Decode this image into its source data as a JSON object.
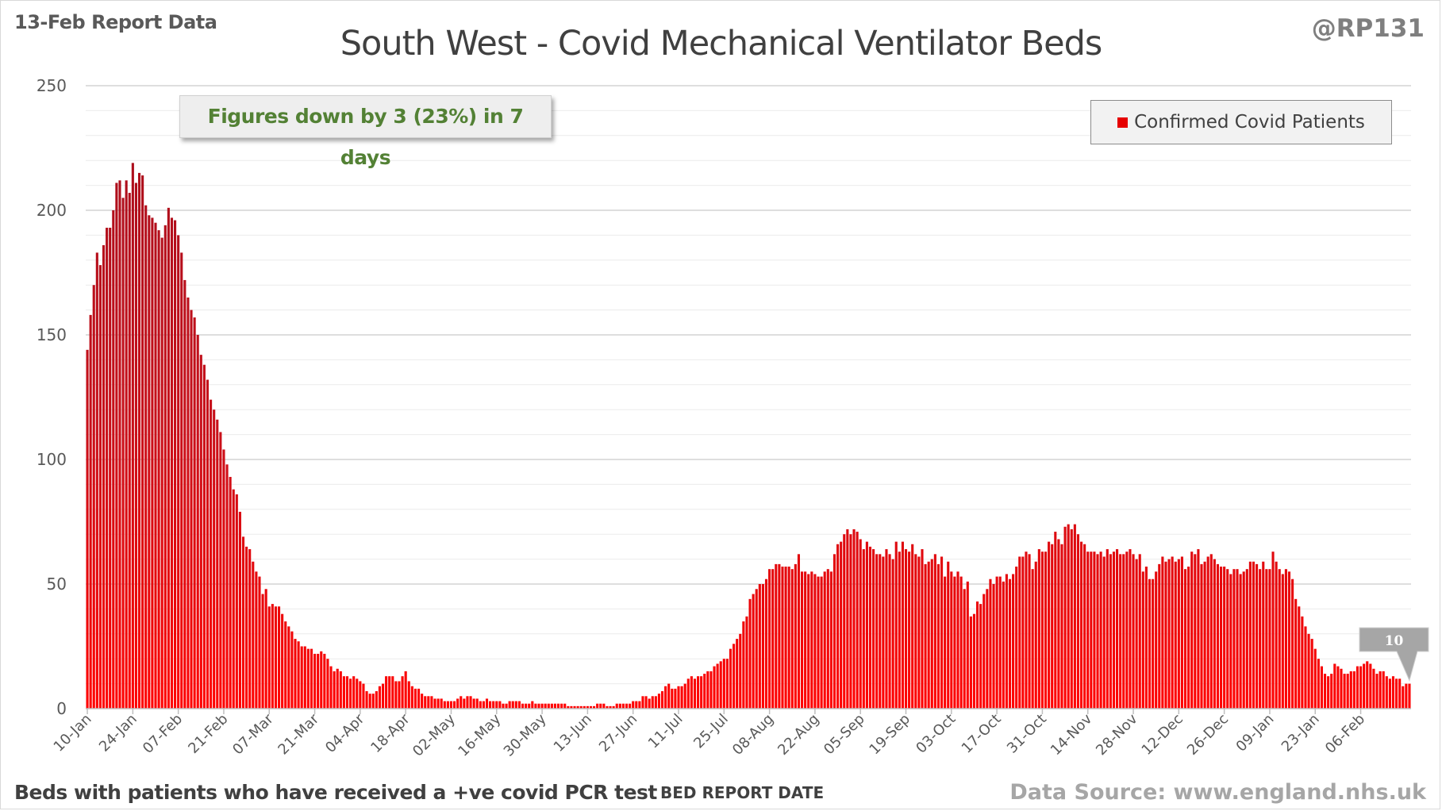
{
  "header": {
    "report_date": "13-Feb Report Data",
    "handle": "@RP131"
  },
  "footer": {
    "subtitle": "Beds with patients who have received a +ve covid PCR test",
    "source": "Data Source: www.england.nhs.uk"
  },
  "callout": {
    "text": "Figures down by 3 (23%) in 7 days",
    "color": "#538135"
  },
  "colors": {
    "bar_top": "#a40d1c",
    "bar_bottom": "#ff0000",
    "grid": "#d9d9d9",
    "axis_text": "#595959"
  },
  "chart_data": {
    "type": "bar",
    "title": "South West - Covid Mechanical Ventilator Beds",
    "xlabel": "BED REPORT DATE",
    "ylabel": "",
    "ylim": [
      0,
      250
    ],
    "yticks": [
      0,
      50,
      100,
      150,
      200,
      250
    ],
    "grid": true,
    "legend_position": "top-right",
    "x_start": "10-Jan",
    "x_tick_every_days": 14,
    "xtick_labels": [
      "10-Jan",
      "24-Jan",
      "07-Feb",
      "21-Feb",
      "07-Mar",
      "21-Mar",
      "04-Apr",
      "18-Apr",
      "02-May",
      "16-May",
      "30-May",
      "13-Jun",
      "27-Jun",
      "11-Jul",
      "25-Jul",
      "08-Aug",
      "22-Aug",
      "05-Sep",
      "19-Sep",
      "03-Oct",
      "17-Oct",
      "31-Oct",
      "14-Nov",
      "28-Nov",
      "12-Dec",
      "26-Dec",
      "09-Jan",
      "23-Jan",
      "06-Feb"
    ],
    "series": [
      {
        "name": "Confirmed Covid Patients",
        "color": "#e60000",
        "values": [
          144,
          158,
          170,
          183,
          178,
          186,
          193,
          193,
          200,
          211,
          212,
          205,
          212,
          207,
          219,
          211,
          215,
          214,
          202,
          198,
          197,
          195,
          192,
          189,
          194,
          201,
          197,
          196,
          190,
          183,
          172,
          165,
          160,
          157,
          150,
          142,
          138,
          132,
          124,
          120,
          116,
          111,
          104,
          98,
          93,
          88,
          86,
          79,
          69,
          65,
          64,
          59,
          55,
          53,
          46,
          48,
          41,
          42,
          41,
          41,
          38,
          35,
          33,
          31,
          28,
          27,
          25,
          25,
          24,
          24,
          22,
          22,
          23,
          22,
          20,
          17,
          15,
          16,
          15,
          13,
          13,
          12,
          13,
          12,
          11,
          10,
          7,
          6,
          6,
          7,
          9,
          10,
          13,
          13,
          13,
          11,
          11,
          13,
          15,
          11,
          9,
          8,
          8,
          6,
          5,
          5,
          5,
          4,
          4,
          4,
          3,
          3,
          3,
          3,
          4,
          5,
          4,
          5,
          5,
          4,
          4,
          3,
          3,
          4,
          3,
          3,
          3,
          3,
          2,
          2,
          3,
          3,
          3,
          3,
          2,
          2,
          2,
          3,
          2,
          2,
          2,
          2,
          2,
          2,
          2,
          2,
          2,
          2,
          1,
          1,
          1,
          1,
          1,
          1,
          1,
          1,
          1,
          2,
          2,
          2,
          1,
          1,
          1,
          2,
          2,
          2,
          2,
          2,
          3,
          3,
          3,
          5,
          5,
          4,
          5,
          5,
          6,
          7,
          9,
          10,
          8,
          8,
          9,
          9,
          10,
          12,
          13,
          12,
          13,
          13,
          14,
          15,
          15,
          17,
          18,
          19,
          20,
          20,
          24,
          26,
          28,
          30,
          35,
          37,
          44,
          46,
          48,
          50,
          50,
          52,
          56,
          56,
          58,
          58,
          57,
          57,
          57,
          56,
          58,
          62,
          55,
          55,
          54,
          55,
          54,
          53,
          53,
          55,
          56,
          55,
          62,
          66,
          67,
          70,
          72,
          70,
          72,
          71,
          68,
          64,
          67,
          65,
          64,
          62,
          62,
          61,
          64,
          62,
          60,
          67,
          63,
          67,
          64,
          63,
          66,
          62,
          61,
          64,
          58,
          59,
          60,
          62,
          58,
          61,
          53,
          59,
          55,
          53,
          55,
          53,
          48,
          51,
          37,
          38,
          43,
          42,
          46,
          48,
          52,
          50,
          53,
          53,
          51,
          54,
          52,
          54,
          57,
          61,
          61,
          63,
          62,
          56,
          59,
          64,
          63,
          63,
          67,
          66,
          71,
          68,
          66,
          73,
          74,
          72,
          74,
          70,
          67,
          66,
          63,
          63,
          63,
          62,
          63,
          61,
          64,
          62,
          63,
          64,
          62,
          62,
          63,
          64,
          62,
          60,
          62,
          55,
          57,
          52,
          52,
          55,
          58,
          61,
          59,
          60,
          61,
          59,
          60,
          61,
          56,
          57,
          63,
          62,
          64,
          58,
          59,
          61,
          62,
          60,
          58,
          57,
          57,
          56,
          54,
          56,
          56,
          54,
          55,
          56,
          59,
          59,
          58,
          56,
          59,
          56,
          56,
          63,
          59,
          56,
          54,
          56,
          55,
          52,
          44,
          41,
          37,
          33,
          30,
          28,
          24,
          20,
          17,
          14,
          13,
          14,
          18,
          17,
          16,
          14,
          14,
          15,
          15,
          17,
          17,
          18,
          19,
          18,
          16,
          14,
          15,
          15,
          13,
          12,
          13,
          12,
          12,
          9,
          10,
          10
        ]
      }
    ],
    "data_labels": [
      {
        "index": "last",
        "text": "10"
      }
    ]
  }
}
